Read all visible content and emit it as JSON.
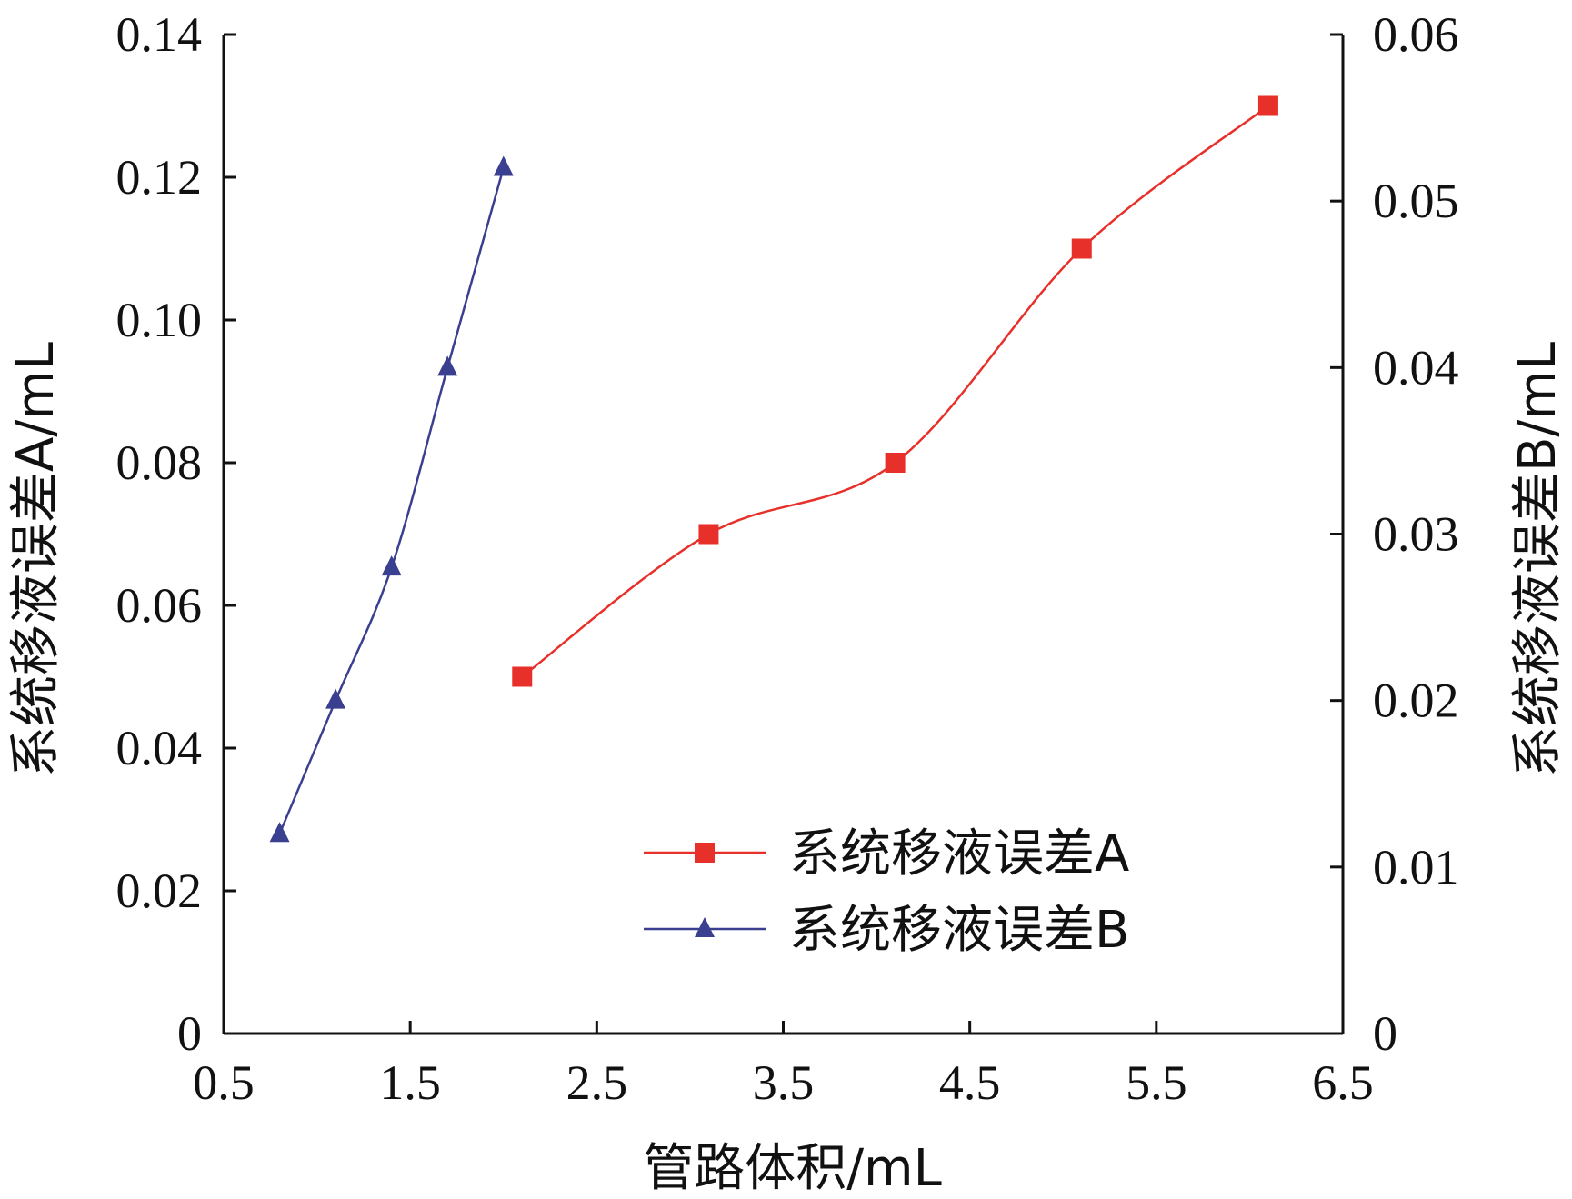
{
  "chart_data": {
    "type": "line",
    "xlabel": "管路体积/mL",
    "ylabel_left": "系统移液误差A/mL",
    "ylabel_right": "系统移液误差B/mL",
    "xlim": [
      0.5,
      6.5
    ],
    "ylim_left": [
      0,
      0.14
    ],
    "ylim_right": [
      0,
      0.06
    ],
    "x_ticks": [
      "0.5",
      "1.5",
      "2.5",
      "3.5",
      "4.5",
      "5.5",
      "6.5"
    ],
    "y_left_ticks": [
      "0",
      "0.02",
      "0.04",
      "0.06",
      "0.08",
      "0.10",
      "0.12",
      "0.14"
    ],
    "y_right_ticks": [
      "0",
      "0.01",
      "0.02",
      "0.03",
      "0.04",
      "0.05",
      "0.06"
    ],
    "grid": false,
    "legend_position": "bottom-right",
    "series": [
      {
        "name": "系统移液误差A",
        "axis": "left",
        "color": "#e8302a",
        "marker": "square",
        "x": [
          2.1,
          3.1,
          4.1,
          5.1,
          6.1
        ],
        "y": [
          0.05,
          0.07,
          0.08,
          0.11,
          0.13
        ]
      },
      {
        "name": "系统移液误差B",
        "axis": "right",
        "color": "#3a3f8f",
        "marker": "triangle",
        "x": [
          0.8,
          1.1,
          1.4,
          1.7,
          2.0
        ],
        "y": [
          0.012,
          0.02,
          0.028,
          0.04,
          0.052
        ]
      }
    ]
  }
}
